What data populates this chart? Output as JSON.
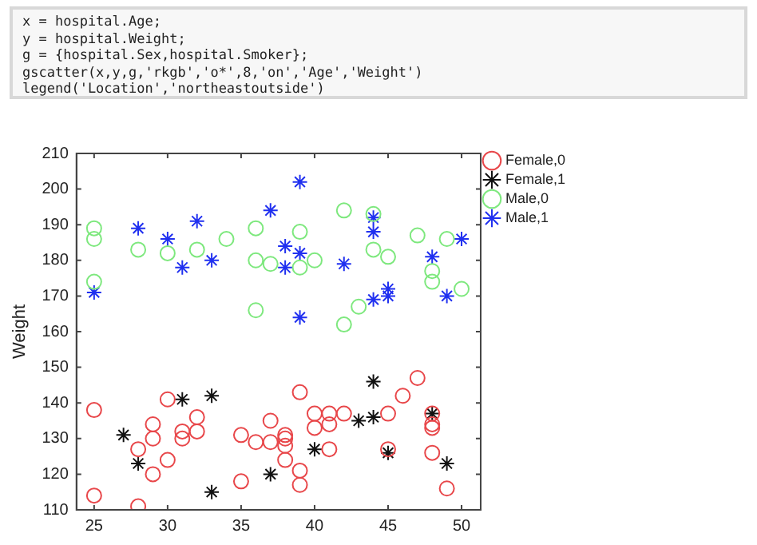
{
  "chart_data": {
    "type": "scatter",
    "ylabel": "Weight",
    "xlim": [
      23.8,
      51.3
    ],
    "xticks": [
      25,
      30,
      35,
      40,
      45,
      50
    ],
    "ylim": [
      110,
      210
    ],
    "yticks": [
      110,
      120,
      130,
      140,
      150,
      160,
      170,
      180,
      190,
      200,
      210
    ],
    "grid": false,
    "legend": "top right",
    "annotations": [
      "x = hospital.Age;",
      "y = hospital.Weight;",
      "g = {hospital.Sex,hospital.Smoker};",
      "gscatter(x,y,g,'rkgb','o*',8,'on','Age','Weight')",
      "legend('Location','northeastoutside')"
    ],
    "series": [
      {
        "name": "Female,0",
        "color": "#e8474a",
        "marker": "circle",
        "x": [
          25,
          25,
          28,
          28,
          29,
          29,
          29,
          30,
          30,
          31,
          31,
          32,
          32,
          35,
          35,
          36,
          37,
          37,
          38,
          38,
          38,
          38,
          39,
          39,
          39,
          40,
          40,
          41,
          41,
          41,
          42,
          45,
          45,
          46,
          47,
          48,
          48,
          48,
          48,
          49
        ],
        "values": [
          138,
          114,
          127,
          111,
          134,
          130,
          120,
          141,
          124,
          132,
          130,
          136,
          132,
          131,
          118,
          129,
          135,
          129,
          131,
          130,
          128,
          124,
          143,
          121,
          117,
          137,
          133,
          137,
          134,
          127,
          137,
          137,
          127,
          142,
          147,
          137,
          134,
          133,
          126,
          116
        ]
      },
      {
        "name": "Female,1",
        "color": "#111111",
        "marker": "cross",
        "x": [
          27,
          28,
          31,
          33,
          33,
          37,
          40,
          43,
          44,
          44,
          45,
          48,
          49
        ],
        "values": [
          131,
          123,
          141,
          142,
          115,
          120,
          127,
          135,
          136,
          146,
          126,
          137,
          123
        ]
      },
      {
        "name": "Male,0",
        "color": "#7ee87e",
        "marker": "circle",
        "x": [
          25,
          25,
          25,
          28,
          30,
          32,
          34,
          36,
          36,
          37,
          39,
          39,
          40,
          36,
          42,
          42,
          43,
          44,
          44,
          45,
          47,
          48,
          48,
          49,
          50
        ],
        "values": [
          189,
          186,
          174,
          183,
          182,
          183,
          186,
          189,
          180,
          179,
          188,
          178,
          180,
          166,
          194,
          162,
          167,
          193,
          183,
          181,
          187,
          177,
          174,
          186,
          172
        ]
      },
      {
        "name": "Male,1",
        "color": "#2030f0",
        "marker": "cross",
        "x": [
          25,
          28,
          30,
          31,
          32,
          33,
          37,
          38,
          38,
          39,
          39,
          39,
          42,
          44,
          44,
          44,
          45,
          45,
          48,
          49,
          50
        ],
        "values": [
          171,
          189,
          186,
          178,
          191,
          180,
          194,
          184,
          178,
          202,
          182,
          164,
          179,
          192,
          188,
          169,
          172,
          170,
          181,
          170,
          186
        ]
      }
    ]
  }
}
